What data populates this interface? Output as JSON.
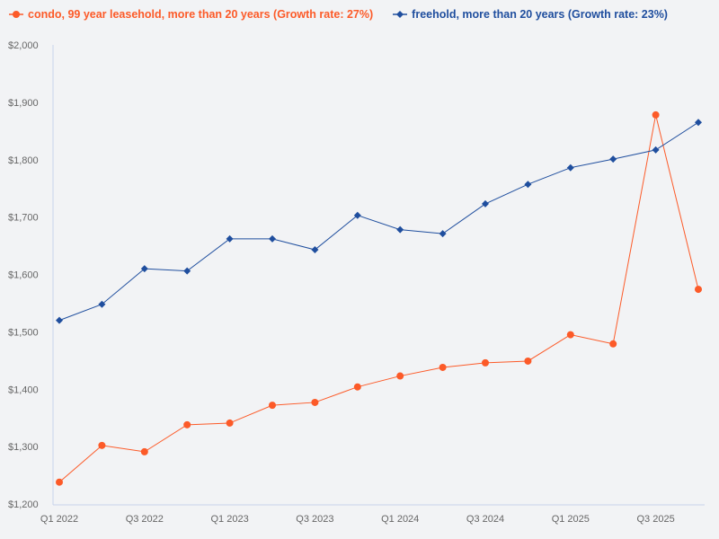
{
  "chart_data": {
    "type": "line",
    "title": "",
    "xlabel": "",
    "ylabel": "",
    "ylim": [
      1200,
      2000
    ],
    "y_ticks": [
      "$1,200",
      "$1,300",
      "$1,400",
      "$1,500",
      "$1,600",
      "$1,700",
      "$1,800",
      "$1,900",
      "$2,000"
    ],
    "y_tick_values": [
      1200,
      1300,
      1400,
      1500,
      1600,
      1700,
      1800,
      1900,
      2000
    ],
    "categories": [
      "Q1 2022",
      "Q2 2022",
      "Q3 2022",
      "Q4 2022",
      "Q1 2023",
      "Q2 2023",
      "Q3 2023",
      "Q4 2023",
      "Q1 2024",
      "Q2 2024",
      "Q3 2024",
      "Q4 2024",
      "Q1 2025",
      "Q2 2025",
      "Q3 2025",
      "Q4 2025"
    ],
    "x_tick_labels": [
      "Q1 2022",
      "Q3 2022",
      "Q1 2023",
      "Q3 2023",
      "Q1 2024",
      "Q3 2024",
      "Q1 2025",
      "Q3 2025"
    ],
    "grid": false,
    "legend_position": "top-left",
    "series": [
      {
        "name": "condo, 99 year leasehold, more than 20 years (Growth rate: 27%)",
        "color": "#fc5a28",
        "marker": "circle",
        "values": [
          1238,
          1302,
          1291,
          1338,
          1341,
          1372,
          1377,
          1404,
          1423,
          1438,
          1446,
          1449,
          1495,
          1479,
          1878,
          1574
        ]
      },
      {
        "name": "freehold, more than 20 years (Growth rate: 23%)",
        "color": "#1f4e9e",
        "marker": "diamond",
        "values": [
          1520,
          1548,
          1610,
          1606,
          1662,
          1662,
          1643,
          1703,
          1678,
          1671,
          1723,
          1757,
          1786,
          1801,
          1817,
          1865
        ]
      }
    ]
  }
}
